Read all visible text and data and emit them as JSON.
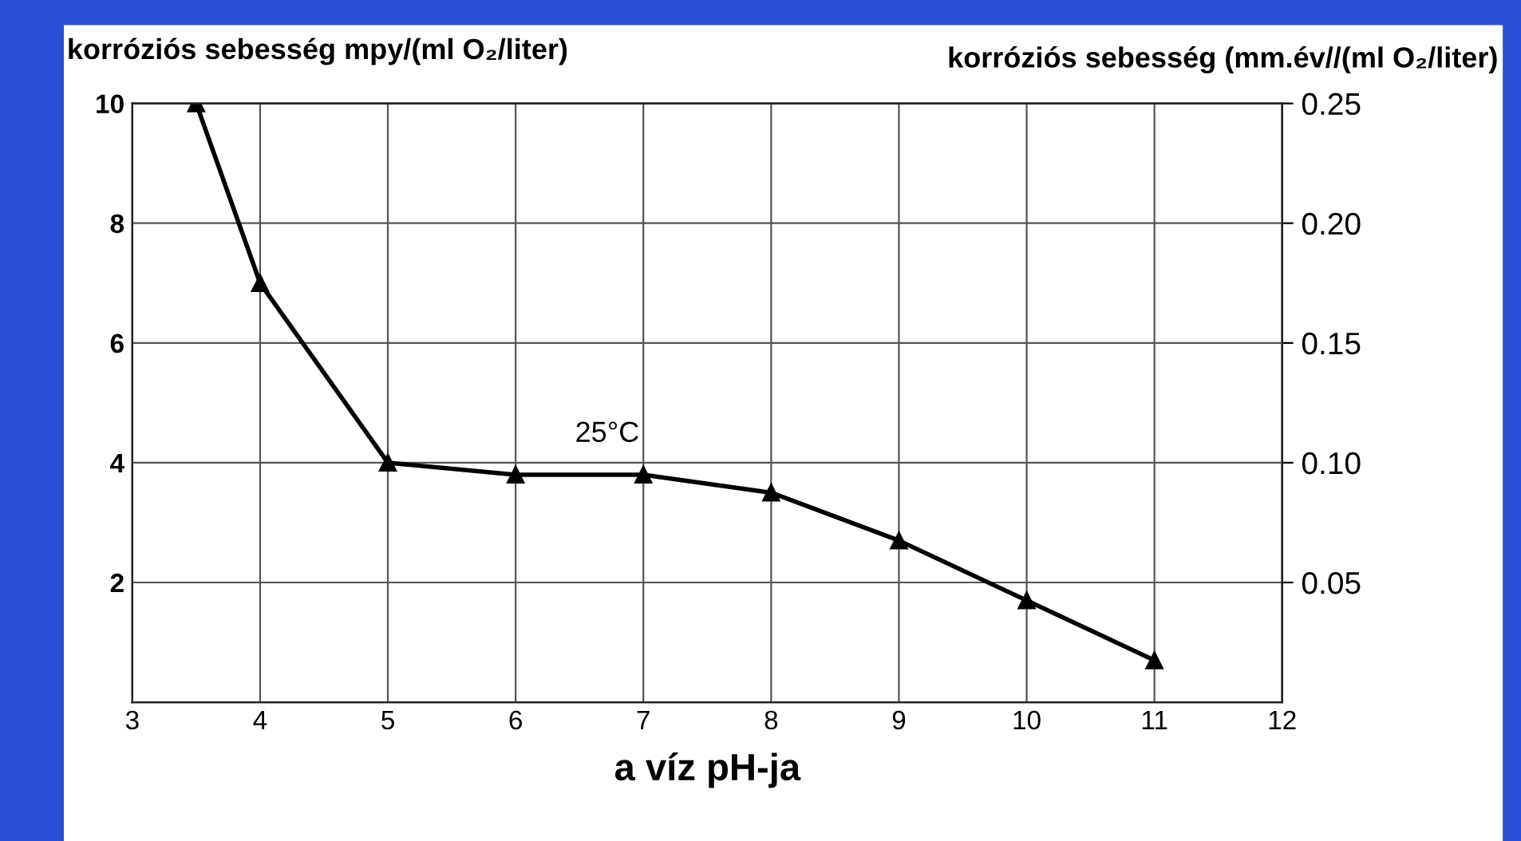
{
  "chart_data": {
    "type": "line",
    "xlabel": "a víz pH-ja",
    "ylabel": "korróziós sebesség mpy/(ml O₂/liter)",
    "y2label": "korróziós sebesség (mm.év//(ml O₂/liter)",
    "x": [
      3.5,
      4,
      5,
      6,
      7,
      8,
      9,
      10,
      11
    ],
    "series": [
      {
        "color": "#000000",
        "values": [
          10,
          7.0,
          4.0,
          3.8,
          3.8,
          3.5,
          2.7,
          1.7,
          0.7
        ]
      }
    ],
    "xlim": [
      3,
      12
    ],
    "xticks": [
      3,
      4,
      5,
      6,
      7,
      8,
      9,
      10,
      11,
      12
    ],
    "ylim": [
      0,
      10
    ],
    "yticks": [
      2,
      4,
      6,
      8,
      10
    ],
    "y2lim": [
      0,
      0.25
    ],
    "y2ticks": [
      {
        "value": 0.05,
        "label": "0.05"
      },
      {
        "value": 0.1,
        "label": "0.10"
      },
      {
        "value": 0.15,
        "label": "0.15"
      },
      {
        "value": 0.2,
        "label": "0.20"
      },
      {
        "value": 0.25,
        "label": "0.25"
      }
    ],
    "annotations": [
      "25°C"
    ],
    "grid": true,
    "marker": "triangle",
    "line_style": "solid",
    "legend": false
  }
}
